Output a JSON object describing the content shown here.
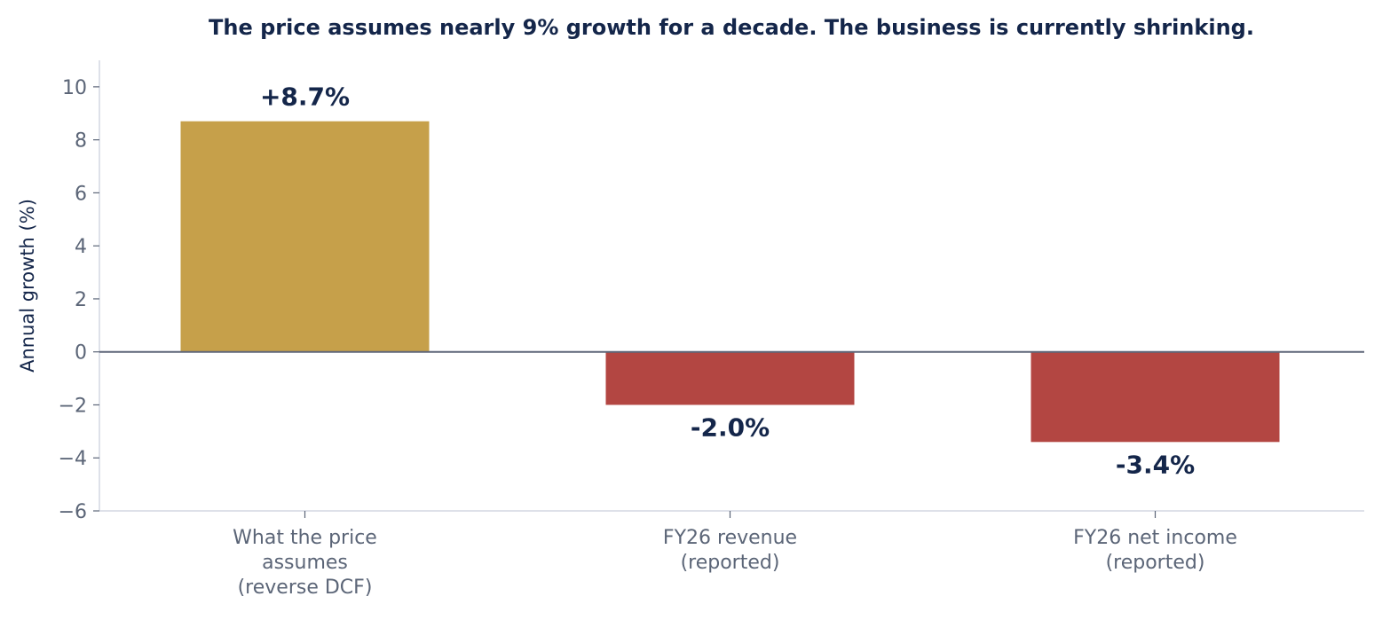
{
  "chart_data": {
    "type": "bar",
    "title": "The price assumes nearly 9% growth for a decade. The business is currently shrinking.",
    "xlabel": "",
    "ylabel": "Annual growth (%)",
    "ylim": [
      -6,
      11
    ],
    "yticks": [
      10,
      8,
      6,
      4,
      2,
      0,
      -2,
      -4,
      -6
    ],
    "ytick_labels": [
      "10",
      "8",
      "6",
      "4",
      "2",
      "0",
      "−2",
      "−4",
      "−6"
    ],
    "categories": [
      [
        "What the price",
        "assumes",
        "(reverse DCF)"
      ],
      [
        "FY26 revenue",
        "(reported)"
      ],
      [
        "FY26 net income",
        "(reported)"
      ]
    ],
    "values": [
      8.7,
      -2.0,
      -3.4
    ],
    "data_labels": [
      "+8.7%",
      "-2.0%",
      "-3.4%"
    ],
    "grid": false,
    "legend": "none"
  },
  "colors": {
    "positive_bar": "#c6a04a",
    "negative_bar": "#b34642",
    "title": "#14264a",
    "data_label": "#14264a",
    "axis_label": "#14264a",
    "tick_label": "#5b6577",
    "zero_line": "#5e6679",
    "spine": "#d3d7e2"
  }
}
